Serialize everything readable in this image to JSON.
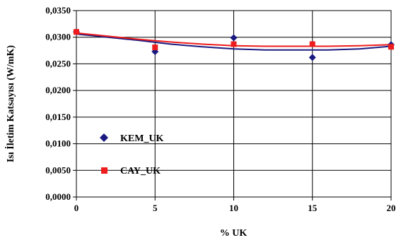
{
  "chart_data": {
    "type": "scatter",
    "xlabel": "% UK",
    "ylabel": "Isı İletim Katsayısı  (W/mK)",
    "xlim": [
      0,
      20
    ],
    "ylim": [
      0,
      0.035
    ],
    "x_ticks": [
      "0",
      "5",
      "10",
      "15",
      "20"
    ],
    "y_ticks": [
      "0,0000",
      "0,0050",
      "0,0100",
      "0,0150",
      "0,0200",
      "0,0250",
      "0,0300",
      "0,0350"
    ],
    "grid": "horizontal",
    "legend_position": "left-middle",
    "series": [
      {
        "name": "KEM_UK",
        "marker": "diamond",
        "color": "#1a1a80",
        "x": [
          0,
          5,
          10,
          15,
          20
        ],
        "y": [
          0.031,
          0.0273,
          0.0299,
          0.0262,
          0.0286
        ],
        "trend": [
          [
            0,
            0.0306
          ],
          [
            2,
            0.03
          ],
          [
            4,
            0.0294
          ],
          [
            6,
            0.0287
          ],
          [
            8,
            0.0282
          ],
          [
            10,
            0.0278
          ],
          [
            12,
            0.0276
          ],
          [
            14,
            0.0276
          ],
          [
            16,
            0.0276
          ],
          [
            18,
            0.0278
          ],
          [
            20,
            0.0283
          ]
        ]
      },
      {
        "name": "CAY_UK",
        "marker": "square",
        "color": "#ee1c1c",
        "x": [
          0,
          5,
          10,
          15,
          20
        ],
        "y": [
          0.031,
          0.0281,
          0.0287,
          0.0287,
          0.0282
        ],
        "trend": [
          [
            0,
            0.0308
          ],
          [
            2,
            0.0302
          ],
          [
            4,
            0.0296
          ],
          [
            6,
            0.0291
          ],
          [
            8,
            0.0287
          ],
          [
            10,
            0.0284
          ],
          [
            12,
            0.0283
          ],
          [
            14,
            0.0283
          ],
          [
            16,
            0.0283
          ],
          [
            18,
            0.0284
          ],
          [
            20,
            0.0286
          ]
        ]
      }
    ]
  }
}
